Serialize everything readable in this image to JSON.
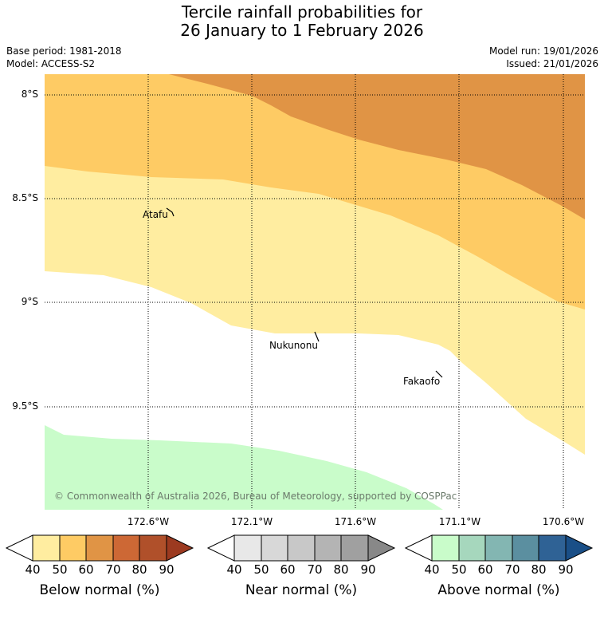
{
  "title": {
    "line1": "Tercile rainfall probabilities for",
    "line2": "26 January to 1 February 2026"
  },
  "meta": {
    "base_period": "Base period: 1981-2018",
    "model": "Model: ACCESS-S2",
    "model_run": "Model run: 19/01/2026",
    "issued": "Issued: 21/01/2026"
  },
  "map": {
    "lat_labels": [
      "8°S",
      "8.5°S",
      "9°S",
      "9.5°S"
    ],
    "lon_labels": [
      "172.6°W",
      "172.1°W",
      "171.6°W",
      "171.1°W",
      "170.6°W"
    ],
    "places": [
      {
        "name": "Atafu"
      },
      {
        "name": "Nukunonu"
      },
      {
        "name": "Fakaofo"
      }
    ],
    "copyright": "© Commonwealth of Australia 2026, Bureau of Meteorology, supported by COSPPac"
  },
  "colorbars": [
    {
      "title": "Below normal (%)",
      "ticks": [
        "40",
        "50",
        "60",
        "70",
        "80",
        "90"
      ],
      "colors": [
        "#ffeda0",
        "#fecb64",
        "#e09445",
        "#cd6835",
        "#b0502a",
        "#9c3a20"
      ]
    },
    {
      "title": "Near normal (%)",
      "ticks": [
        "40",
        "50",
        "60",
        "70",
        "80",
        "90"
      ],
      "colors": [
        "#e8e8e8",
        "#d8d8d8",
        "#c8c8c8",
        "#b4b4b4",
        "#a0a0a0",
        "#888888"
      ]
    },
    {
      "title": "Above normal (%)",
      "ticks": [
        "40",
        "50",
        "60",
        "70",
        "80",
        "90"
      ],
      "colors": [
        "#c9fcca",
        "#a6d7bd",
        "#83b6b2",
        "#5b8fa0",
        "#2f6295",
        "#1a4f87"
      ]
    }
  ],
  "colors": {
    "below_40_50": "#ffeda0",
    "below_50_60": "#fecb64",
    "below_60_70": "#e09445",
    "above_40_50": "#c9fcca"
  }
}
